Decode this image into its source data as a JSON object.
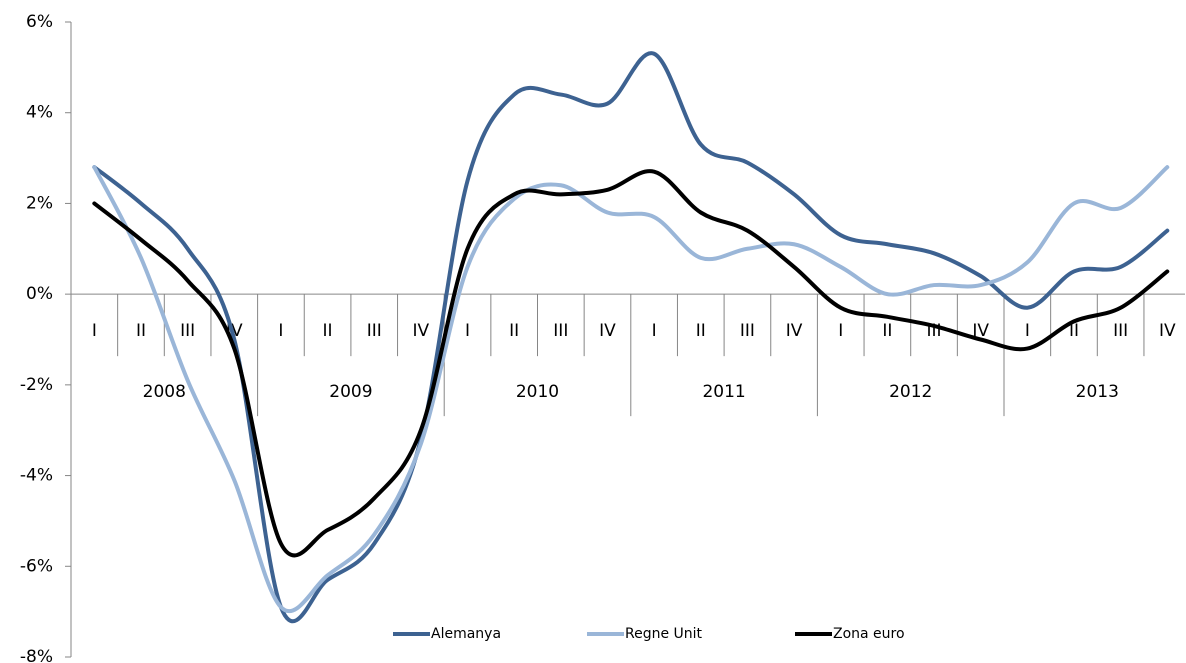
{
  "chart_data": {
    "type": "line",
    "categories": [
      "I",
      "II",
      "III",
      "IV",
      "I",
      "II",
      "III",
      "IV",
      "I",
      "II",
      "III",
      "IV",
      "I",
      "II",
      "III",
      "IV",
      "I",
      "II",
      "III",
      "IV",
      "I",
      "II",
      "III",
      "IV"
    ],
    "years": [
      "2008",
      "2009",
      "2010",
      "2011",
      "2012",
      "2013"
    ],
    "series": [
      {
        "name": "Alemanya",
        "color": "#3d6291",
        "values": [
          2.8,
          2.0,
          1.0,
          -1.0,
          -6.9,
          -6.3,
          -5.5,
          -3.2,
          2.5,
          4.4,
          4.4,
          4.2,
          5.3,
          3.3,
          2.9,
          2.2,
          1.3,
          1.1,
          0.9,
          0.4,
          -0.3,
          0.5,
          0.6,
          1.4
        ]
      },
      {
        "name": "Regne Unit",
        "color": "#9ab6d8",
        "values": [
          2.8,
          0.8,
          -1.9,
          -4.1,
          -6.9,
          -6.2,
          -5.3,
          -3.3,
          0.6,
          2.1,
          2.4,
          1.8,
          1.7,
          0.8,
          1.0,
          1.1,
          0.6,
          0.0,
          0.2,
          0.2,
          0.7,
          2.0,
          1.9,
          2.8
        ]
      },
      {
        "name": "Zona euro",
        "color": "#000000",
        "values": [
          2.0,
          1.2,
          0.3,
          -1.2,
          -5.5,
          -5.2,
          -4.5,
          -3.0,
          1.0,
          2.2,
          2.2,
          2.3,
          2.7,
          1.8,
          1.4,
          0.6,
          -0.3,
          -0.5,
          -0.7,
          -1.0,
          -1.2,
          -0.6,
          -0.3,
          0.5
        ]
      }
    ],
    "ylim": [
      -8,
      6
    ],
    "yticks": [
      {
        "value": -8,
        "label": "-8%"
      },
      {
        "value": -6,
        "label": "-6%"
      },
      {
        "value": -4,
        "label": "-4%"
      },
      {
        "value": -2,
        "label": "-2%"
      },
      {
        "value": 0,
        "label": "0%"
      },
      {
        "value": 2,
        "label": "2%"
      },
      {
        "value": 4,
        "label": "4%"
      },
      {
        "value": 6,
        "label": "6%"
      }
    ],
    "legend": "bottom"
  }
}
